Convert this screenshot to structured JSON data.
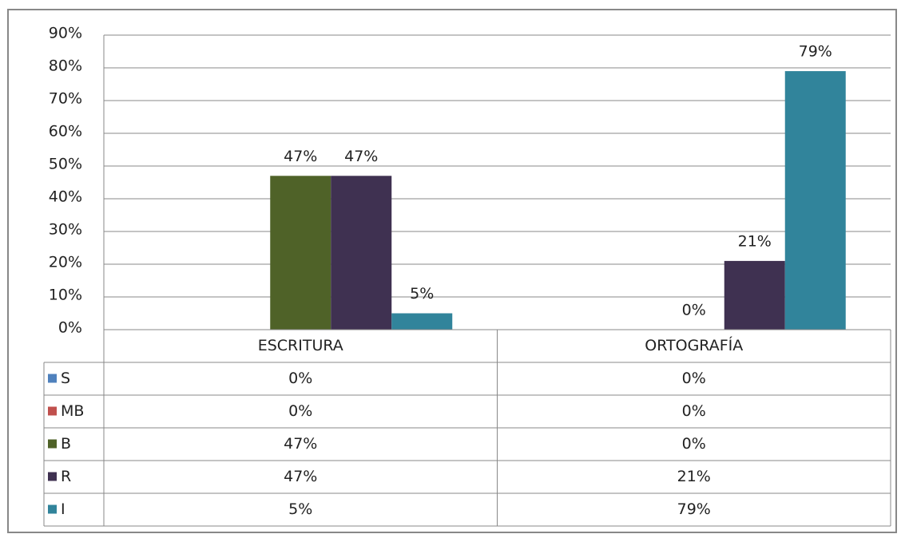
{
  "chart_data": {
    "type": "bar",
    "categories": [
      "ESCRITURA",
      "ORTOGRAFÍA"
    ],
    "series": [
      {
        "name": "S",
        "color": "#4f81bd",
        "values": [
          0,
          0
        ],
        "value_labels": [
          "0%",
          "0%"
        ],
        "data_labels": false
      },
      {
        "name": "MB",
        "color": "#c0504d",
        "values": [
          0,
          0
        ],
        "value_labels": [
          "0%",
          "0%"
        ],
        "data_labels": false
      },
      {
        "name": "B",
        "color": "#4f6228",
        "values": [
          47,
          0
        ],
        "value_labels": [
          "47%",
          "0%"
        ],
        "data_labels": true
      },
      {
        "name": "R",
        "color": "#3f3151",
        "values": [
          47,
          21
        ],
        "value_labels": [
          "47%",
          "21%"
        ],
        "data_labels": true
      },
      {
        "name": "I",
        "color": "#31849b",
        "values": [
          5,
          79
        ],
        "value_labels": [
          "5%",
          "79%"
        ],
        "data_labels": true
      }
    ],
    "ylim": [
      0,
      90
    ],
    "yticks": [
      {
        "value": 0,
        "label": "0%"
      },
      {
        "value": 10,
        "label": "10%"
      },
      {
        "value": 20,
        "label": "20%"
      },
      {
        "value": 30,
        "label": "30%"
      },
      {
        "value": 40,
        "label": "40%"
      },
      {
        "value": 50,
        "label": "50%"
      },
      {
        "value": 60,
        "label": "60%"
      },
      {
        "value": 70,
        "label": "70%"
      },
      {
        "value": 80,
        "label": "80%"
      },
      {
        "value": 90,
        "label": "90%"
      }
    ],
    "grid": true,
    "data_table": true
  }
}
